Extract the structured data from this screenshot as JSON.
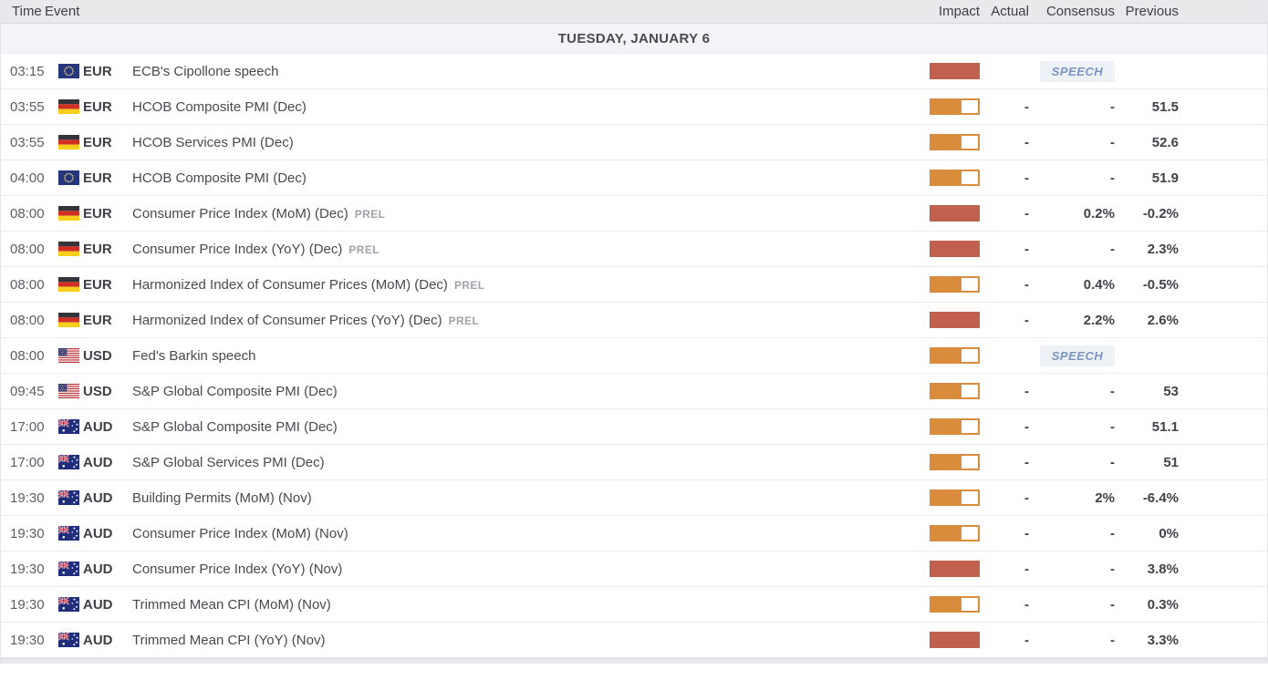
{
  "columns": {
    "time": "Time",
    "event": "Event",
    "impact": "Impact",
    "actual": "Actual",
    "consensus": "Consensus",
    "previous": "Previous"
  },
  "date_header": "TUESDAY, JANUARY 6",
  "colors": {
    "impact_high": "#c2604f",
    "impact_medium": "#d98c3c",
    "speech_text": "#7a95c4",
    "speech_bg": "#eef1f6"
  },
  "rows": [
    {
      "time": "03:15",
      "country": "eu",
      "flag_icon": "eu-flag-icon",
      "currency": "EUR",
      "event": "ECB's Cipollone speech",
      "suffix": "",
      "impact": "high",
      "actual": "",
      "consensus": "",
      "previous": "",
      "badge": "SPEECH"
    },
    {
      "time": "03:55",
      "country": "de",
      "flag_icon": "germany-flag-icon",
      "currency": "EUR",
      "event": "HCOB Composite PMI (Dec)",
      "suffix": "",
      "impact": "medium",
      "actual": "-",
      "consensus": "-",
      "previous": "51.5",
      "badge": ""
    },
    {
      "time": "03:55",
      "country": "de",
      "flag_icon": "germany-flag-icon",
      "currency": "EUR",
      "event": "HCOB Services PMI (Dec)",
      "suffix": "",
      "impact": "medium",
      "actual": "-",
      "consensus": "-",
      "previous": "52.6",
      "badge": ""
    },
    {
      "time": "04:00",
      "country": "eu",
      "flag_icon": "eu-flag-icon",
      "currency": "EUR",
      "event": "HCOB Composite PMI (Dec)",
      "suffix": "",
      "impact": "medium",
      "actual": "-",
      "consensus": "-",
      "previous": "51.9",
      "badge": ""
    },
    {
      "time": "08:00",
      "country": "de",
      "flag_icon": "germany-flag-icon",
      "currency": "EUR",
      "event": "Consumer Price Index (MoM) (Dec)",
      "suffix": "PREL",
      "impact": "high",
      "actual": "-",
      "consensus": "0.2%",
      "previous": "-0.2%",
      "badge": ""
    },
    {
      "time": "08:00",
      "country": "de",
      "flag_icon": "germany-flag-icon",
      "currency": "EUR",
      "event": "Consumer Price Index (YoY) (Dec)",
      "suffix": "PREL",
      "impact": "high",
      "actual": "-",
      "consensus": "-",
      "previous": "2.3%",
      "badge": ""
    },
    {
      "time": "08:00",
      "country": "de",
      "flag_icon": "germany-flag-icon",
      "currency": "EUR",
      "event": "Harmonized Index of Consumer Prices (MoM) (Dec)",
      "suffix": "PREL",
      "impact": "medium",
      "actual": "-",
      "consensus": "0.4%",
      "previous": "-0.5%",
      "badge": ""
    },
    {
      "time": "08:00",
      "country": "de",
      "flag_icon": "germany-flag-icon",
      "currency": "EUR",
      "event": "Harmonized Index of Consumer Prices (YoY) (Dec)",
      "suffix": "PREL",
      "impact": "high",
      "actual": "-",
      "consensus": "2.2%",
      "previous": "2.6%",
      "badge": ""
    },
    {
      "time": "08:00",
      "country": "us",
      "flag_icon": "us-flag-icon",
      "currency": "USD",
      "event": "Fed's Barkin speech",
      "suffix": "",
      "impact": "medium",
      "actual": "",
      "consensus": "",
      "previous": "",
      "badge": "SPEECH"
    },
    {
      "time": "09:45",
      "country": "us",
      "flag_icon": "us-flag-icon",
      "currency": "USD",
      "event": "S&P Global Composite PMI (Dec)",
      "suffix": "",
      "impact": "medium",
      "actual": "-",
      "consensus": "-",
      "previous": "53",
      "badge": ""
    },
    {
      "time": "17:00",
      "country": "au",
      "flag_icon": "australia-flag-icon",
      "currency": "AUD",
      "event": "S&P Global Composite PMI (Dec)",
      "suffix": "",
      "impact": "medium",
      "actual": "-",
      "consensus": "-",
      "previous": "51.1",
      "badge": ""
    },
    {
      "time": "17:00",
      "country": "au",
      "flag_icon": "australia-flag-icon",
      "currency": "AUD",
      "event": "S&P Global Services PMI (Dec)",
      "suffix": "",
      "impact": "medium",
      "actual": "-",
      "consensus": "-",
      "previous": "51",
      "badge": ""
    },
    {
      "time": "19:30",
      "country": "au",
      "flag_icon": "australia-flag-icon",
      "currency": "AUD",
      "event": "Building Permits (MoM) (Nov)",
      "suffix": "",
      "impact": "medium",
      "actual": "-",
      "consensus": "2%",
      "previous": "-6.4%",
      "badge": ""
    },
    {
      "time": "19:30",
      "country": "au",
      "flag_icon": "australia-flag-icon",
      "currency": "AUD",
      "event": "Consumer Price Index (MoM) (Nov)",
      "suffix": "",
      "impact": "medium",
      "actual": "-",
      "consensus": "-",
      "previous": "0%",
      "badge": ""
    },
    {
      "time": "19:30",
      "country": "au",
      "flag_icon": "australia-flag-icon",
      "currency": "AUD",
      "event": "Consumer Price Index (YoY) (Nov)",
      "suffix": "",
      "impact": "high",
      "actual": "-",
      "consensus": "-",
      "previous": "3.8%",
      "badge": ""
    },
    {
      "time": "19:30",
      "country": "au",
      "flag_icon": "australia-flag-icon",
      "currency": "AUD",
      "event": "Trimmed Mean CPI (MoM) (Nov)",
      "suffix": "",
      "impact": "medium",
      "actual": "-",
      "consensus": "-",
      "previous": "0.3%",
      "badge": ""
    },
    {
      "time": "19:30",
      "country": "au",
      "flag_icon": "australia-flag-icon",
      "currency": "AUD",
      "event": "Trimmed Mean CPI (YoY) (Nov)",
      "suffix": "",
      "impact": "high",
      "actual": "-",
      "consensus": "-",
      "previous": "3.3%",
      "badge": ""
    }
  ]
}
